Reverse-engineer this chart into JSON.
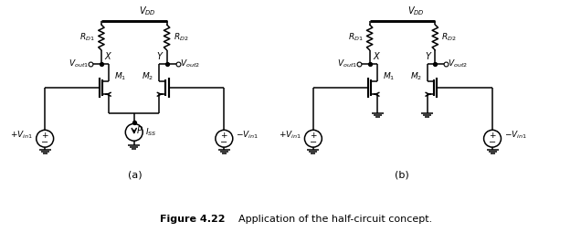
{
  "title": "Figure 4.22",
  "caption": "Application of the half-circuit concept.",
  "fig_width": 6.36,
  "fig_height": 2.54,
  "bg_color": "#ffffff",
  "line_color": "#000000",
  "lw": 1.1
}
